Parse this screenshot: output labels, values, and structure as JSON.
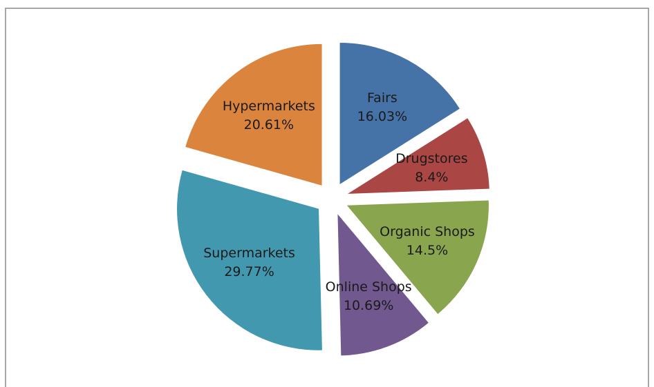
{
  "chart_data": {
    "type": "pie",
    "categories": [
      "Fairs",
      "Drugstores",
      "Organic Shops",
      "Online Shops",
      "Supermarkets",
      "Hypermarkets"
    ],
    "values": [
      16.03,
      8.4,
      14.5,
      10.69,
      29.77,
      20.61
    ],
    "value_labels": [
      "16.03%",
      "8.4%",
      "14.5%",
      "10.69%",
      "29.77%",
      "20.61%"
    ],
    "colors": [
      "#4572a7",
      "#aa4643",
      "#89a54e",
      "#71588f",
      "#4198af",
      "#db843d"
    ]
  }
}
